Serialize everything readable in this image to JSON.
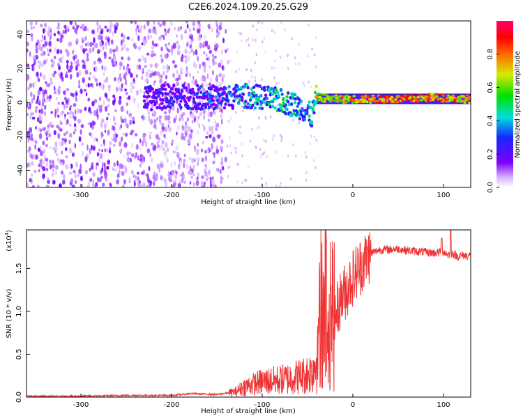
{
  "title": "C2E6.2024.109.20.25.G29",
  "chart_data": [
    {
      "type": "heatmap",
      "xlabel": "Height of straight line (km)",
      "ylabel": "Frequency (Hz)",
      "xlim": [
        -360,
        130
      ],
      "ylim": [
        -50,
        48
      ],
      "xticks": [
        -300,
        -200,
        -100,
        0,
        100
      ],
      "yticks": [
        -40,
        -20,
        0,
        20,
        40
      ],
      "colorbar": {
        "label": "Normalized spectral amplitude",
        "range": [
          0.0,
          1.0
        ],
        "ticks": [
          "0.0",
          "0.2",
          "0.4",
          "0.6",
          "0.8"
        ],
        "colormap": "white-purple-blue-cyan-green-yellow-red-magenta"
      },
      "noise_region_x": [
        -360,
        -140
      ],
      "sparse_region_x": [
        -140,
        -40
      ],
      "signal": [
        {
          "x": -230,
          "y": 2,
          "amp": 0.3
        },
        {
          "x": -200,
          "y": 4,
          "amp": 0.35
        },
        {
          "x": -170,
          "y": 3,
          "amp": 0.35
        },
        {
          "x": -140,
          "y": 3,
          "amp": 0.4
        },
        {
          "x": -120,
          "y": 4,
          "amp": 0.5
        },
        {
          "x": -100,
          "y": 3,
          "amp": 0.5
        },
        {
          "x": -80,
          "y": 1,
          "amp": 0.55
        },
        {
          "x": -60,
          "y": -2,
          "amp": 0.55
        },
        {
          "x": -45,
          "y": -8,
          "amp": 0.5
        },
        {
          "x": -40,
          "y": 3,
          "amp": 0.8
        },
        {
          "x": -20,
          "y": 2,
          "amp": 0.85
        },
        {
          "x": 0,
          "y": 2,
          "amp": 0.9
        },
        {
          "x": 30,
          "y": 2,
          "amp": 0.95
        },
        {
          "x": 60,
          "y": 2,
          "amp": 0.95
        },
        {
          "x": 90,
          "y": 3,
          "amp": 0.95
        },
        {
          "x": 130,
          "y": 2,
          "amp": 0.9
        }
      ]
    },
    {
      "type": "line",
      "xlabel": "Height of straight line (km)",
      "ylabel": "SNR (10 * v/v)",
      "yscale_label": "(x10",
      "yscale_exp": "4",
      "xlim": [
        -360,
        130
      ],
      "ylim": [
        0,
        1.95
      ],
      "xticks": [
        -300,
        -200,
        -100,
        0,
        100
      ],
      "yticks": [
        "0.0",
        "0.5",
        "1.0",
        "1.5"
      ],
      "color": "#ee3333",
      "x": [
        -360,
        -300,
        -250,
        -200,
        -180,
        -150,
        -130,
        -120,
        -100,
        -80,
        -70,
        -55,
        -45,
        -38,
        -35,
        -32,
        -30,
        -28,
        -25,
        -20,
        -15,
        -10,
        -5,
        0,
        10,
        20,
        30,
        40,
        50,
        60,
        70,
        80,
        90,
        100,
        105,
        110,
        115,
        120,
        130
      ],
      "y": [
        0.01,
        0.01,
        0.02,
        0.02,
        0.04,
        0.03,
        0.06,
        0.12,
        0.18,
        0.2,
        0.22,
        0.25,
        0.3,
        0.5,
        1.6,
        0.6,
        1.85,
        0.4,
        1.2,
        0.9,
        1.1,
        1.2,
        1.3,
        1.4,
        1.55,
        1.68,
        1.72,
        1.72,
        1.73,
        1.71,
        1.7,
        1.69,
        1.68,
        1.7,
        1.66,
        1.68,
        1.64,
        1.65,
        1.65
      ],
      "spikes": [
        {
          "x": 98,
          "y": 1.85
        },
        {
          "x": 108,
          "y": 1.95
        }
      ]
    }
  ]
}
